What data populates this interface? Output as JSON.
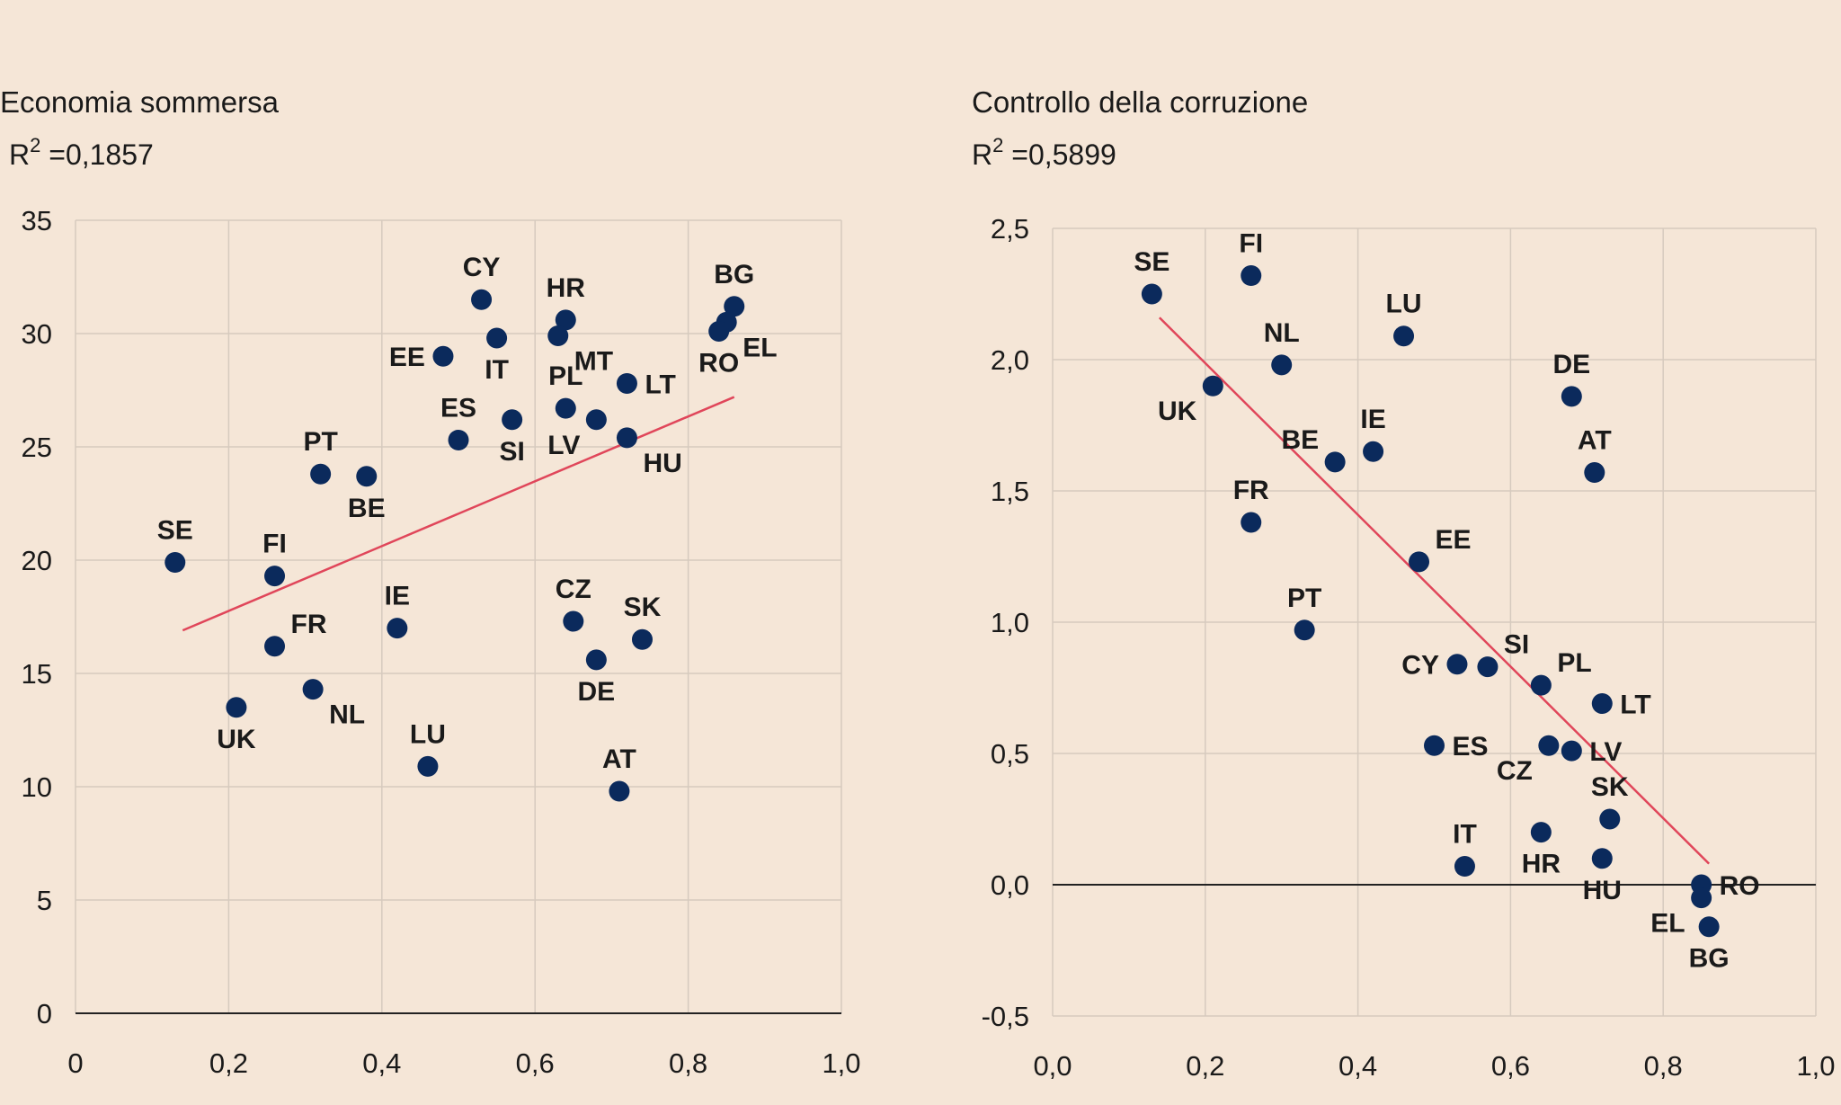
{
  "colors": {
    "background": "#f5e6d7",
    "point": "#0b2a5c",
    "trend": "#e0465a",
    "grid": "#d6cabe"
  },
  "chart_data": [
    {
      "type": "scatter",
      "title": "Economia sommersa",
      "r2_prefix": "R",
      "r2_sup": "2",
      "r2_value": " =0,1857",
      "xlim": [
        0,
        1.0
      ],
      "ylim": [
        0,
        35
      ],
      "xticks": [
        0,
        0.2,
        0.4,
        0.6,
        0.8,
        1.0
      ],
      "xtick_labels": [
        "0",
        "0,2",
        "0,4",
        "0,6",
        "0,8",
        "1,0"
      ],
      "yticks": [
        0,
        5,
        10,
        15,
        20,
        25,
        30,
        35
      ],
      "ytick_labels": [
        "0",
        "5",
        "10",
        "15",
        "20",
        "25",
        "30",
        "35"
      ],
      "grid": true,
      "trendline": [
        [
          0.14,
          16.9
        ],
        [
          0.86,
          27.2
        ]
      ],
      "points": [
        {
          "label": "SE",
          "x": 0.13,
          "y": 19.9,
          "pos": "above"
        },
        {
          "label": "FI",
          "x": 0.26,
          "y": 19.3,
          "pos": "above"
        },
        {
          "label": "PT",
          "x": 0.32,
          "y": 23.8,
          "pos": "above"
        },
        {
          "label": "BE",
          "x": 0.38,
          "y": 23.7,
          "pos": "below"
        },
        {
          "label": "FR",
          "x": 0.26,
          "y": 16.2,
          "pos": "upper-right"
        },
        {
          "label": "UK",
          "x": 0.21,
          "y": 13.5,
          "pos": "below"
        },
        {
          "label": "NL",
          "x": 0.31,
          "y": 14.3,
          "pos": "lower-right"
        },
        {
          "label": "IE",
          "x": 0.42,
          "y": 17.0,
          "pos": "above"
        },
        {
          "label": "LU",
          "x": 0.46,
          "y": 10.9,
          "pos": "above"
        },
        {
          "label": "EE",
          "x": 0.48,
          "y": 29.0,
          "pos": "left"
        },
        {
          "label": "CY",
          "x": 0.53,
          "y": 31.5,
          "pos": "above"
        },
        {
          "label": "IT",
          "x": 0.55,
          "y": 29.8,
          "pos": "below"
        },
        {
          "label": "ES",
          "x": 0.5,
          "y": 25.3,
          "pos": "above"
        },
        {
          "label": "SI",
          "x": 0.57,
          "y": 26.2,
          "pos": "below"
        },
        {
          "label": "HR",
          "x": 0.64,
          "y": 30.6,
          "pos": "above"
        },
        {
          "label": "MT",
          "x": 0.63,
          "y": 29.9,
          "pos": "lower-right"
        },
        {
          "label": "PL",
          "x": 0.64,
          "y": 26.7,
          "pos": "above"
        },
        {
          "label": "LV",
          "x": 0.68,
          "y": 26.2,
          "pos": "lower-left"
        },
        {
          "label": "LT",
          "x": 0.72,
          "y": 27.8,
          "pos": "right"
        },
        {
          "label": "HU",
          "x": 0.72,
          "y": 25.4,
          "pos": "lower-right"
        },
        {
          "label": "CZ",
          "x": 0.65,
          "y": 17.3,
          "pos": "above"
        },
        {
          "label": "DE",
          "x": 0.68,
          "y": 15.6,
          "pos": "below"
        },
        {
          "label": "SK",
          "x": 0.74,
          "y": 16.5,
          "pos": "above"
        },
        {
          "label": "AT",
          "x": 0.71,
          "y": 9.8,
          "pos": "above"
        },
        {
          "label": "BG",
          "x": 0.86,
          "y": 31.2,
          "pos": "above"
        },
        {
          "label": "EL",
          "x": 0.85,
          "y": 30.5,
          "pos": "lower-right"
        },
        {
          "label": "RO",
          "x": 0.84,
          "y": 30.1,
          "pos": "below"
        }
      ]
    },
    {
      "type": "scatter",
      "title": "Controllo della corruzione",
      "r2_prefix": "R",
      "r2_sup": "2",
      "r2_value": " =0,5899",
      "xlim": [
        0,
        1.0
      ],
      "ylim": [
        -0.5,
        2.5
      ],
      "xticks": [
        0,
        0.2,
        0.4,
        0.6,
        0.8,
        1.0
      ],
      "xtick_labels": [
        "0,0",
        "0,2",
        "0,4",
        "0,6",
        "0,8",
        "1,0"
      ],
      "yticks": [
        -0.5,
        0,
        0.5,
        1.0,
        1.5,
        2.0,
        2.5
      ],
      "ytick_labels": [
        "-0,5",
        "0,0",
        "0,5",
        "1,0",
        "1,5",
        "2,0",
        "2,5"
      ],
      "grid": true,
      "zero_line": true,
      "trendline": [
        [
          0.14,
          2.16
        ],
        [
          0.86,
          0.08
        ]
      ],
      "points": [
        {
          "label": "SE",
          "x": 0.13,
          "y": 2.25,
          "pos": "above"
        },
        {
          "label": "FI",
          "x": 0.26,
          "y": 2.32,
          "pos": "above"
        },
        {
          "label": "UK",
          "x": 0.21,
          "y": 1.9,
          "pos": "lower-left"
        },
        {
          "label": "NL",
          "x": 0.3,
          "y": 1.98,
          "pos": "above"
        },
        {
          "label": "LU",
          "x": 0.46,
          "y": 2.09,
          "pos": "above"
        },
        {
          "label": "BE",
          "x": 0.37,
          "y": 1.61,
          "pos": "upper-left"
        },
        {
          "label": "IE",
          "x": 0.42,
          "y": 1.65,
          "pos": "above"
        },
        {
          "label": "FR",
          "x": 0.26,
          "y": 1.38,
          "pos": "above"
        },
        {
          "label": "EE",
          "x": 0.48,
          "y": 1.23,
          "pos": "upper-right"
        },
        {
          "label": "PT",
          "x": 0.33,
          "y": 0.97,
          "pos": "above"
        },
        {
          "label": "DE",
          "x": 0.68,
          "y": 1.86,
          "pos": "above"
        },
        {
          "label": "AT",
          "x": 0.71,
          "y": 1.57,
          "pos": "above"
        },
        {
          "label": "CY",
          "x": 0.53,
          "y": 0.84,
          "pos": "left"
        },
        {
          "label": "SI",
          "x": 0.57,
          "y": 0.83,
          "pos": "upper-right"
        },
        {
          "label": "PL",
          "x": 0.64,
          "y": 0.76,
          "pos": "upper-right"
        },
        {
          "label": "LT",
          "x": 0.72,
          "y": 0.69,
          "pos": "right"
        },
        {
          "label": "ES",
          "x": 0.5,
          "y": 0.53,
          "pos": "right"
        },
        {
          "label": "CZ",
          "x": 0.65,
          "y": 0.53,
          "pos": "lower-left"
        },
        {
          "label": "LV",
          "x": 0.68,
          "y": 0.51,
          "pos": "right"
        },
        {
          "label": "SK",
          "x": 0.73,
          "y": 0.25,
          "pos": "above"
        },
        {
          "label": "IT",
          "x": 0.54,
          "y": 0.07,
          "pos": "above"
        },
        {
          "label": "HR",
          "x": 0.64,
          "y": 0.2,
          "pos": "below"
        },
        {
          "label": "HU",
          "x": 0.72,
          "y": 0.1,
          "pos": "below"
        },
        {
          "label": "RO",
          "x": 0.85,
          "y": 0.0,
          "pos": "right"
        },
        {
          "label": "EL",
          "x": 0.85,
          "y": -0.05,
          "pos": "lower-left"
        },
        {
          "label": "BG",
          "x": 0.86,
          "y": -0.16,
          "pos": "below"
        }
      ]
    }
  ]
}
